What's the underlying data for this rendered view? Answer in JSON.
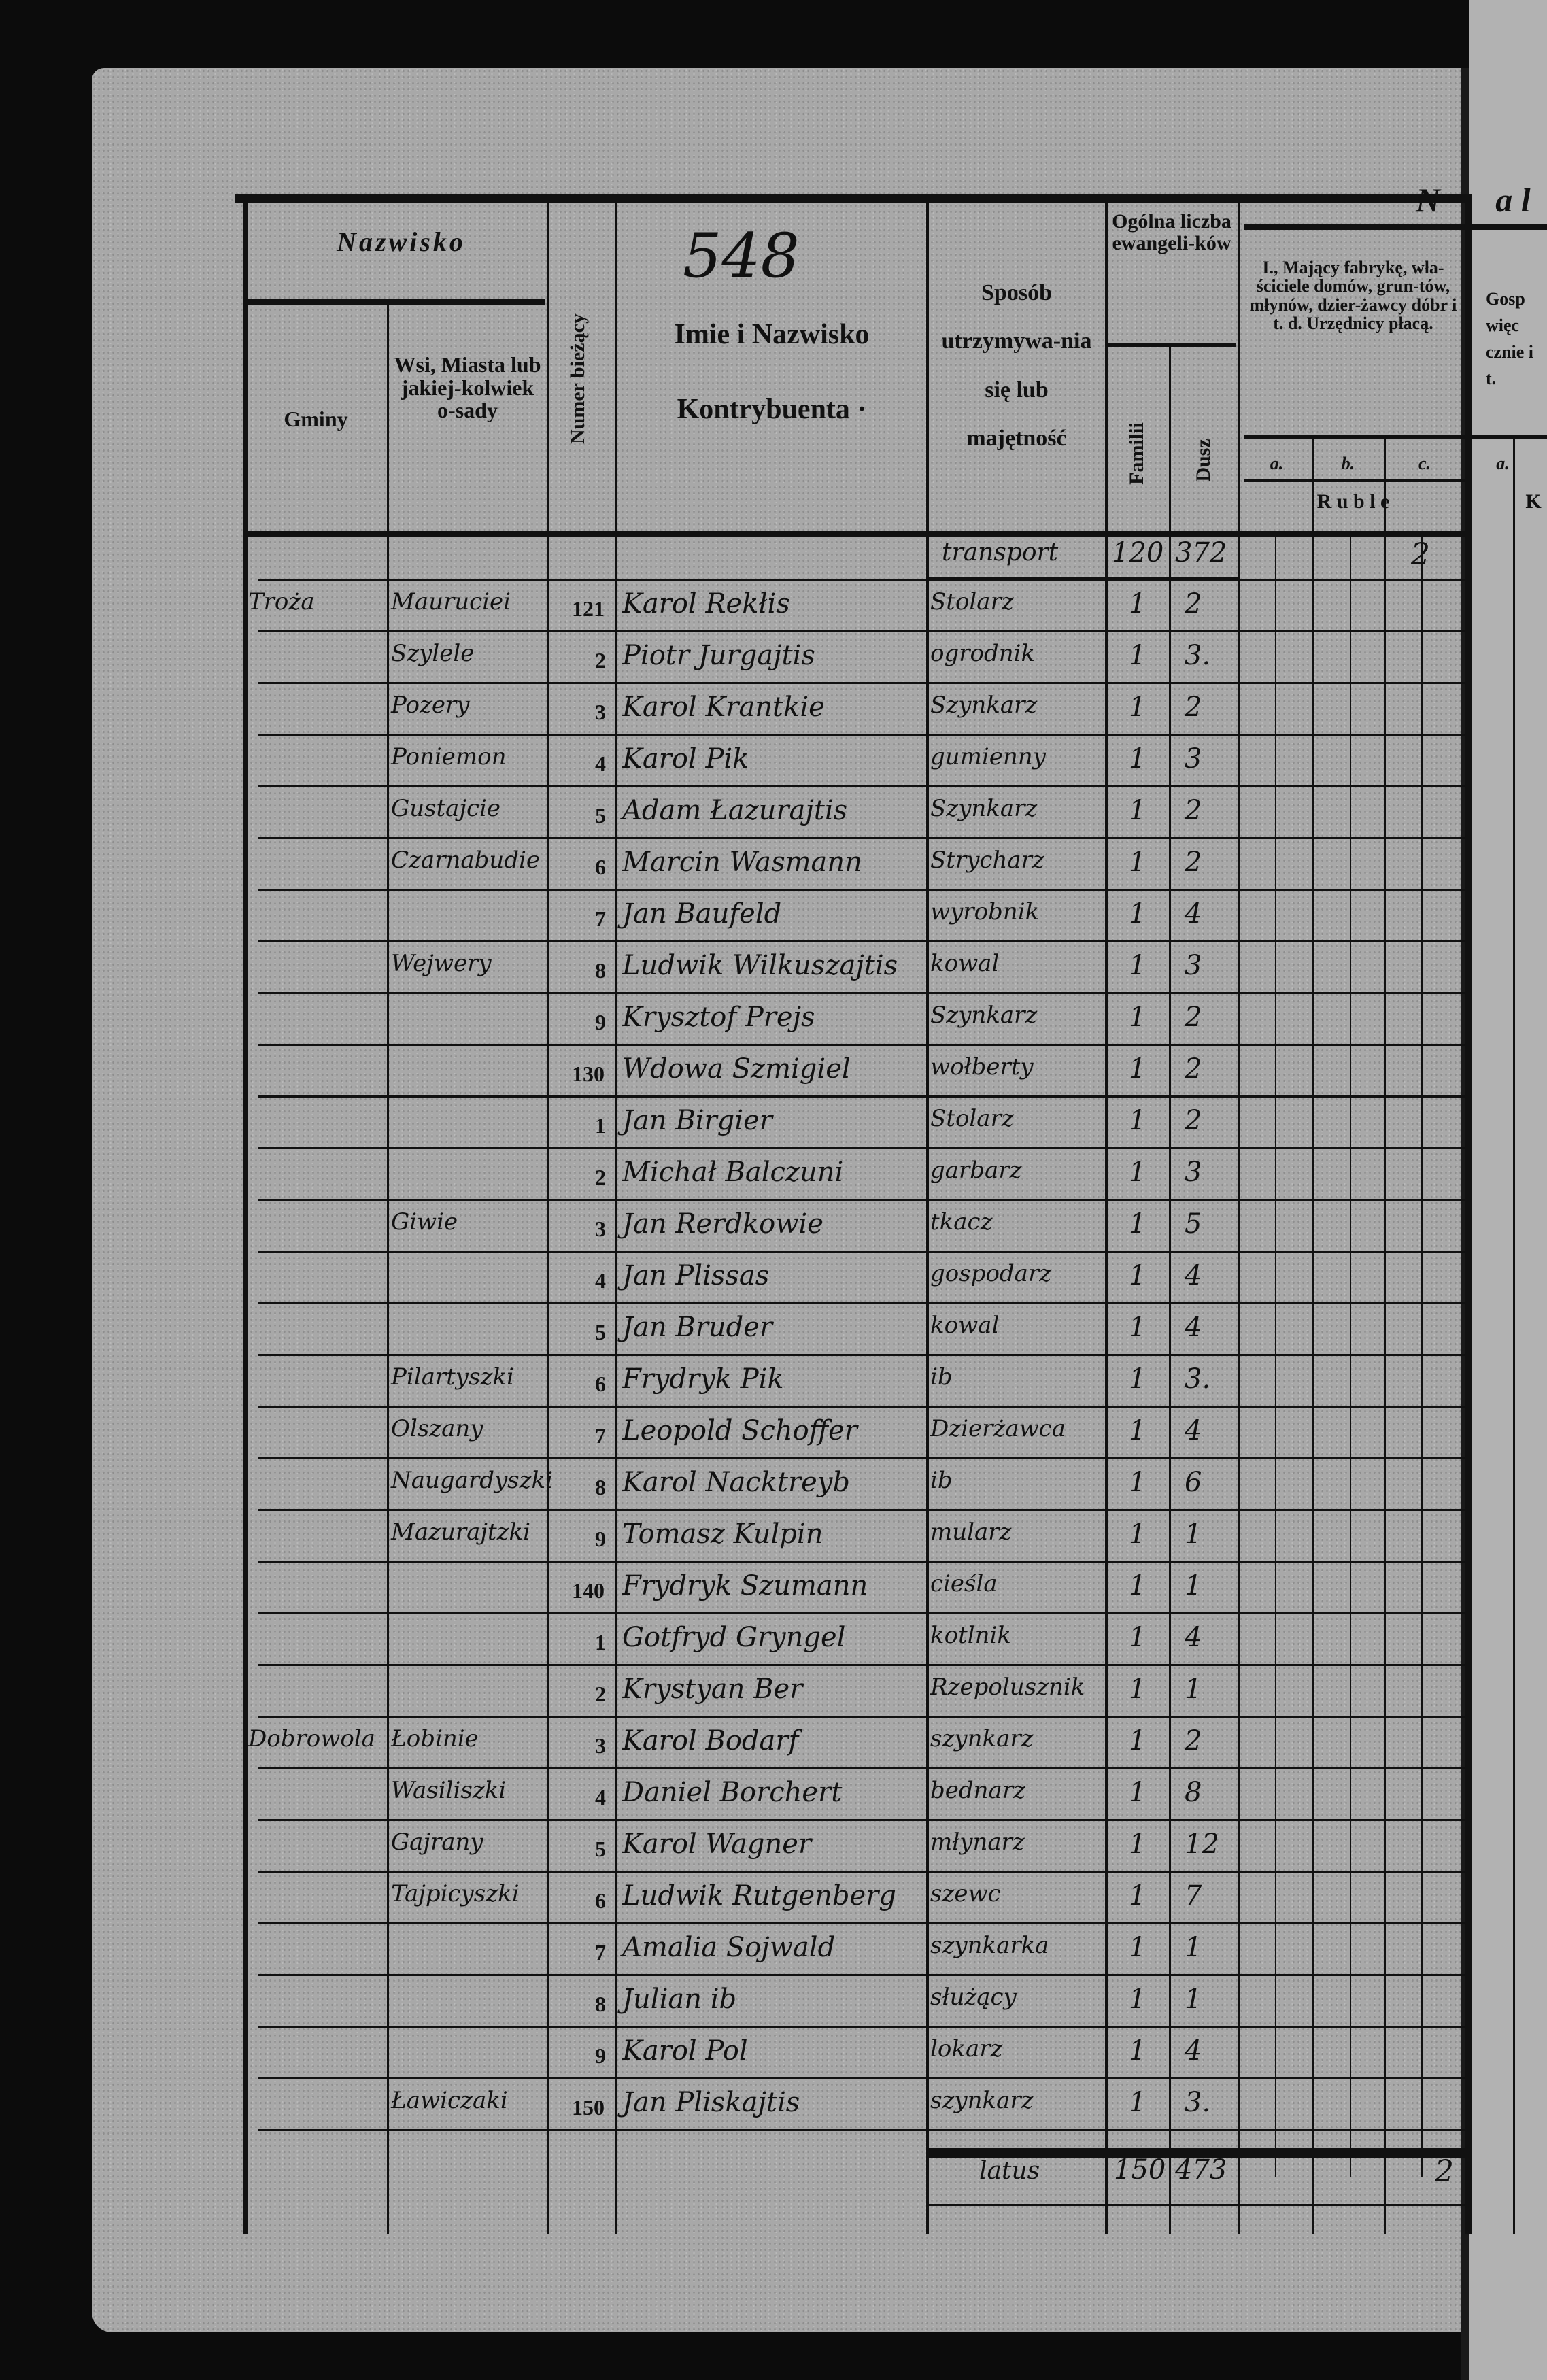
{
  "page_number_handwritten": "548",
  "header": {
    "nazwisko": "Nazwisko",
    "gminy": "Gminy",
    "wsi": "Wsi, Miasta lub jakiej-kolwiek o-sady",
    "numer": "Numer bieżący",
    "imie": "Imie i Nazwisko",
    "kontrybuenta": "Kontrybuenta ·",
    "sposob": "Sposób utrzymywa-nia się lub majętność",
    "ogolna": "Ogólna liczba ewangeli-ków",
    "familii": "Familii",
    "dusz": "Dusz",
    "section_letter": "N",
    "section_letter_2": "a l",
    "section_one": "I., Mający fabrykę, wła-ściciele domów, grun-tów, młynów, dzier-żawcy dóbr i t. d. Urzędnicy płacą.",
    "sub_a": "a.",
    "sub_b": "b.",
    "sub_c": "c.",
    "ruble": "R u b l e",
    "next_section": "Gosp więc cznie i t.",
    "next_sub_a": "a.",
    "next_currency": "K"
  },
  "transport": {
    "label": "transport",
    "familii": "120",
    "dusz": "372",
    "c": "2"
  },
  "rows": [
    {
      "gmina": "Troża",
      "wies": "Mauruciei",
      "nr": "121",
      "name": "Karol Rekłis",
      "sposob": "Stolarz",
      "fam": "1",
      "dusz": "2"
    },
    {
      "gmina": "",
      "wies": "Szylele",
      "nr": "2",
      "name": "Piotr Jurgajtis",
      "sposob": "ogrodnik",
      "fam": "1",
      "dusz": "3."
    },
    {
      "gmina": "",
      "wies": "Pozery",
      "nr": "3",
      "name": "Karol Krantkie",
      "sposob": "Szynkarz",
      "fam": "1",
      "dusz": "2"
    },
    {
      "gmina": "",
      "wies": "Poniemon",
      "nr": "4",
      "name": "Karol Pik",
      "sposob": "gumienny",
      "fam": "1",
      "dusz": "3"
    },
    {
      "gmina": "",
      "wies": "Gustajcie",
      "nr": "5",
      "name": "Adam Łazurajtis",
      "sposob": "Szynkarz",
      "fam": "1",
      "dusz": "2"
    },
    {
      "gmina": "",
      "wies": "Czarnabudie",
      "nr": "6",
      "name": "Marcin Wasmann",
      "sposob": "Strycharz",
      "fam": "1",
      "dusz": "2"
    },
    {
      "gmina": "",
      "wies": "",
      "nr": "7",
      "name": "Jan Baufeld",
      "sposob": "wyrobnik",
      "fam": "1",
      "dusz": "4"
    },
    {
      "gmina": "",
      "wies": "Wejwery",
      "nr": "8",
      "name": "Ludwik Wilkuszajtis",
      "sposob": "kowal",
      "fam": "1",
      "dusz": "3"
    },
    {
      "gmina": "",
      "wies": "",
      "nr": "9",
      "name": "Krysztof Prejs",
      "sposob": "Szynkarz",
      "fam": "1",
      "dusz": "2"
    },
    {
      "gmina": "",
      "wies": "",
      "nr": "130",
      "name": "Wdowa Szmigiel",
      "sposob": "wołberty",
      "fam": "1",
      "dusz": "2"
    },
    {
      "gmina": "",
      "wies": "",
      "nr": "1",
      "name": "Jan Birgier",
      "sposob": "Stolarz",
      "fam": "1",
      "dusz": "2"
    },
    {
      "gmina": "",
      "wies": "",
      "nr": "2",
      "name": "Michał Balczuni",
      "sposob": "garbarz",
      "fam": "1",
      "dusz": "3"
    },
    {
      "gmina": "",
      "wies": "Giwie",
      "nr": "3",
      "name": "Jan Rerdkowie",
      "sposob": "tkacz",
      "fam": "1",
      "dusz": "5"
    },
    {
      "gmina": "",
      "wies": "",
      "nr": "4",
      "name": "Jan Plissas",
      "sposob": "gospodarz",
      "fam": "1",
      "dusz": "4"
    },
    {
      "gmina": "",
      "wies": "",
      "nr": "5",
      "name": "Jan Bruder",
      "sposob": "kowal",
      "fam": "1",
      "dusz": "4"
    },
    {
      "gmina": "",
      "wies": "Pilartyszki",
      "nr": "6",
      "name": "Frydryk Pik",
      "sposob": "ib",
      "fam": "1",
      "dusz": "3."
    },
    {
      "gmina": "",
      "wies": "Olszany",
      "nr": "7",
      "name": "Leopold Schoffer",
      "sposob": "Dzierżawca",
      "fam": "1",
      "dusz": "4"
    },
    {
      "gmina": "",
      "wies": "Naugardyszki",
      "nr": "8",
      "name": "Karol Nacktreyb",
      "sposob": "ib",
      "fam": "1",
      "dusz": "6"
    },
    {
      "gmina": "",
      "wies": "Mazurajtzki",
      "nr": "9",
      "name": "Tomasz Kulpin",
      "sposob": "mularz",
      "fam": "1",
      "dusz": "1"
    },
    {
      "gmina": "",
      "wies": "",
      "nr": "140",
      "name": "Frydryk Szumann",
      "sposob": "cieśla",
      "fam": "1",
      "dusz": "1"
    },
    {
      "gmina": "",
      "wies": "",
      "nr": "1",
      "name": "Gotfryd Gryngel",
      "sposob": "kotlnik",
      "fam": "1",
      "dusz": "4"
    },
    {
      "gmina": "",
      "wies": "",
      "nr": "2",
      "name": "Krystyan Ber",
      "sposob": "Rzepolusznik",
      "fam": "1",
      "dusz": "1"
    },
    {
      "gmina": "Dobrowola",
      "wies": "Łobinie",
      "nr": "3",
      "name": "Karol Bodarf",
      "sposob": "szynkarz",
      "fam": "1",
      "dusz": "2"
    },
    {
      "gmina": "",
      "wies": "Wasiliszki",
      "nr": "4",
      "name": "Daniel Borchert",
      "sposob": "bednarz",
      "fam": "1",
      "dusz": "8"
    },
    {
      "gmina": "",
      "wies": "Gajrany",
      "nr": "5",
      "name": "Karol Wagner",
      "sposob": "młynarz",
      "fam": "1",
      "dusz": "12"
    },
    {
      "gmina": "",
      "wies": "Tajpicyszki",
      "nr": "6",
      "name": "Ludwik Rutgenberg",
      "sposob": "szewc",
      "fam": "1",
      "dusz": "7"
    },
    {
      "gmina": "",
      "wies": "",
      "nr": "7",
      "name": "Amalia Sojwald",
      "sposob": "szynkarka",
      "fam": "1",
      "dusz": "1"
    },
    {
      "gmina": "",
      "wies": "",
      "nr": "8",
      "name": "Julian ib",
      "sposob": "służący",
      "fam": "1",
      "dusz": "1"
    },
    {
      "gmina": "",
      "wies": "",
      "nr": "9",
      "name": "Karol Pol",
      "sposob": "lokarz",
      "fam": "1",
      "dusz": "4"
    },
    {
      "gmina": "",
      "wies": "Ławiczaki",
      "nr": "150",
      "name": "Jan Pliskajtis",
      "sposob": "szynkarz",
      "fam": "1",
      "dusz": "3."
    }
  ],
  "totals": {
    "label": "latus",
    "familii": "150",
    "dusz": "473",
    "c": "2"
  }
}
